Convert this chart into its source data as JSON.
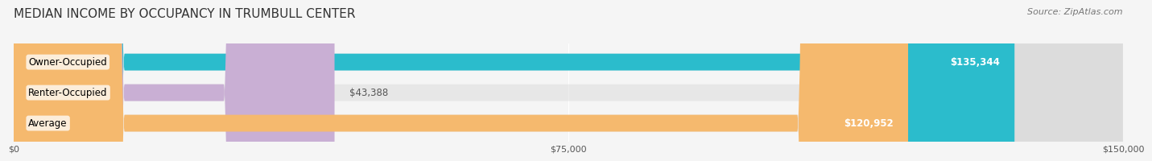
{
  "title": "MEDIAN INCOME BY OCCUPANCY IN TRUMBULL CENTER",
  "source": "Source: ZipAtlas.com",
  "categories": [
    "Owner-Occupied",
    "Renter-Occupied",
    "Average"
  ],
  "values": [
    135344,
    43388,
    120952
  ],
  "bar_colors": [
    "#2bbccc",
    "#c9afd4",
    "#f5b96e"
  ],
  "value_labels": [
    "$135,344",
    "$43,388",
    "$120,952"
  ],
  "xlim": [
    0,
    150000
  ],
  "xticks": [
    0,
    75000,
    150000
  ],
  "xtick_labels": [
    "$0",
    "$75,000",
    "$150,000"
  ],
  "title_fontsize": 11,
  "source_fontsize": 8,
  "label_fontsize": 8.5,
  "value_fontsize": 8.5,
  "background_color": "#f5f5f5"
}
